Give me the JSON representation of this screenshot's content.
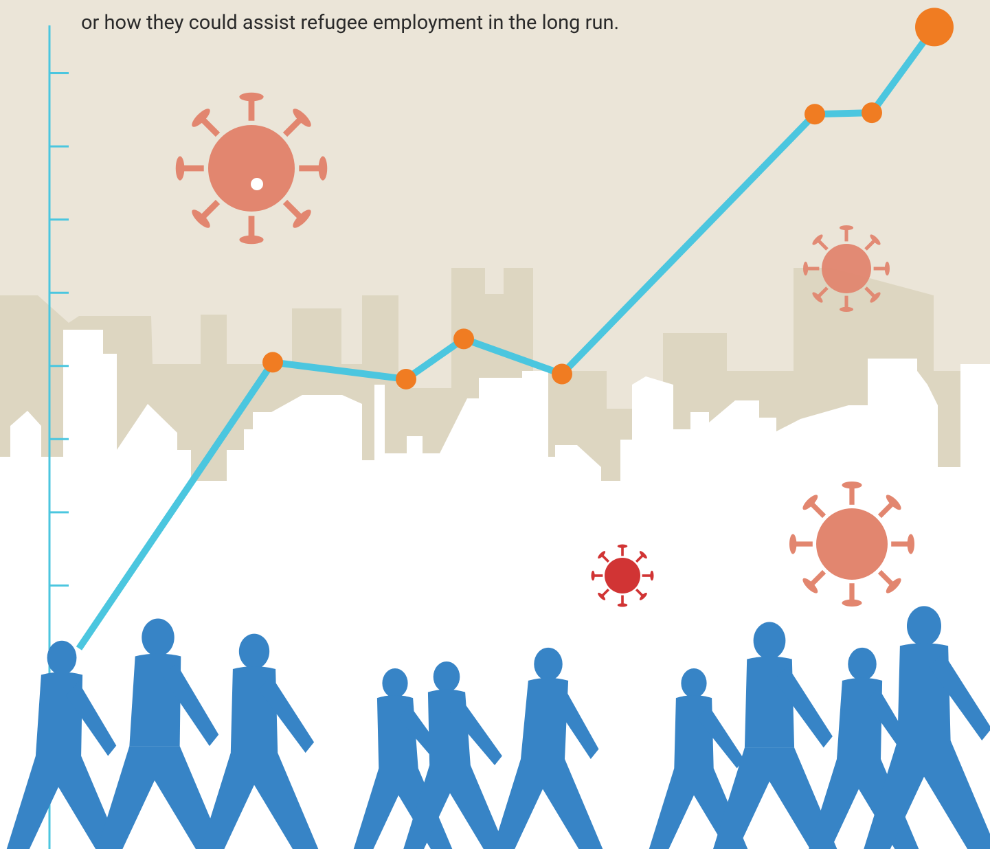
{
  "chart_data": {
    "type": "line",
    "annotation": "or how they could assist refugee employment in the long run.",
    "x": [
      0.43,
      3.25,
      5.19,
      6.03,
      7.46,
      11.14,
      11.97,
      12.88
    ],
    "values": [
      0.14,
      4.05,
      3.82,
      4.37,
      3.89,
      7.44,
      7.46,
      8.63
    ],
    "xlim": [
      -0.72,
      13.69
    ],
    "ylim": [
      -2.6,
      9
    ],
    "yticks": [
      1,
      2,
      3,
      4,
      5,
      6,
      7,
      8
    ],
    "line_color": "#4bc6df",
    "marker_color": "#f07c22"
  }
}
